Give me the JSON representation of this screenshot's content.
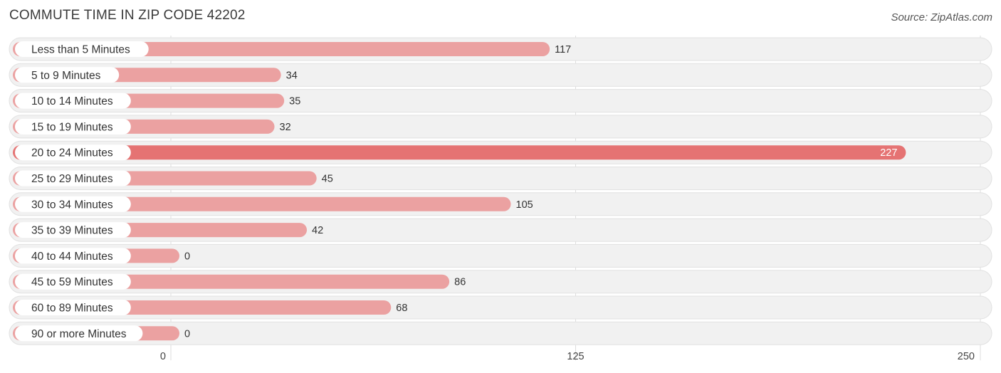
{
  "chart_data": {
    "type": "bar",
    "orientation": "horizontal",
    "title": "COMMUTE TIME IN ZIP CODE 42202",
    "source": "Source: ZipAtlas.com",
    "categories": [
      "Less than 5 Minutes",
      "5 to 9 Minutes",
      "10 to 14 Minutes",
      "15 to 19 Minutes",
      "20 to 24 Minutes",
      "25 to 29 Minutes",
      "30 to 34 Minutes",
      "35 to 39 Minutes",
      "40 to 44 Minutes",
      "45 to 59 Minutes",
      "60 to 89 Minutes",
      "90 or more Minutes"
    ],
    "values": [
      117,
      34,
      35,
      32,
      227,
      45,
      105,
      42,
      0,
      86,
      68,
      0
    ],
    "xlim": [
      0,
      250
    ],
    "xticks": [
      0,
      125,
      250
    ],
    "xlabel": "",
    "ylabel": "",
    "grid": true,
    "colors": {
      "bar": "#eba1a1",
      "bar_highlight": "#e57373",
      "track": "#f1f1f1",
      "track_border": "#e1e1e1",
      "label_pill": "#ffffff",
      "grid": "#dddddd",
      "value_text": "#333333",
      "value_text_inside": "#ffffff"
    }
  }
}
